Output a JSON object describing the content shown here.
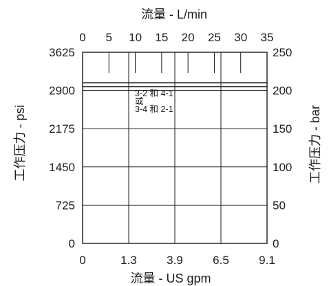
{
  "chart_data": {
    "type": "line",
    "title_top": "流量 - L/min",
    "title_bottom": "流量 - US gpm",
    "ylabel_left": "工作压力 - psi",
    "ylabel_right": "工作压力 - bar",
    "x_top_ticks": [
      "0",
      "5",
      "10",
      "15",
      "20",
      "25",
      "30",
      "35"
    ],
    "x_bottom_ticks": [
      "0",
      "1.3",
      "3.9",
      "6.5",
      "9.1"
    ],
    "y_left_ticks": [
      "0",
      "725",
      "1450",
      "2175",
      "2900",
      "3625"
    ],
    "y_right_ticks": [
      "0",
      "50",
      "100",
      "150",
      "200",
      "250"
    ],
    "x_unit": "L/min",
    "x_range": [
      0,
      35
    ],
    "y_unit": "bar",
    "y_range": [
      0,
      250
    ],
    "grid": true,
    "series": [
      {
        "x": [
          0,
          35
        ],
        "y": [
          210,
          210
        ],
        "label_lines": [
          "3-2  和 4-1",
          "或",
          "3-4  和 2-1"
        ]
      },
      {
        "x": [
          0,
          35
        ],
        "y": [
          205,
          205
        ]
      }
    ]
  }
}
